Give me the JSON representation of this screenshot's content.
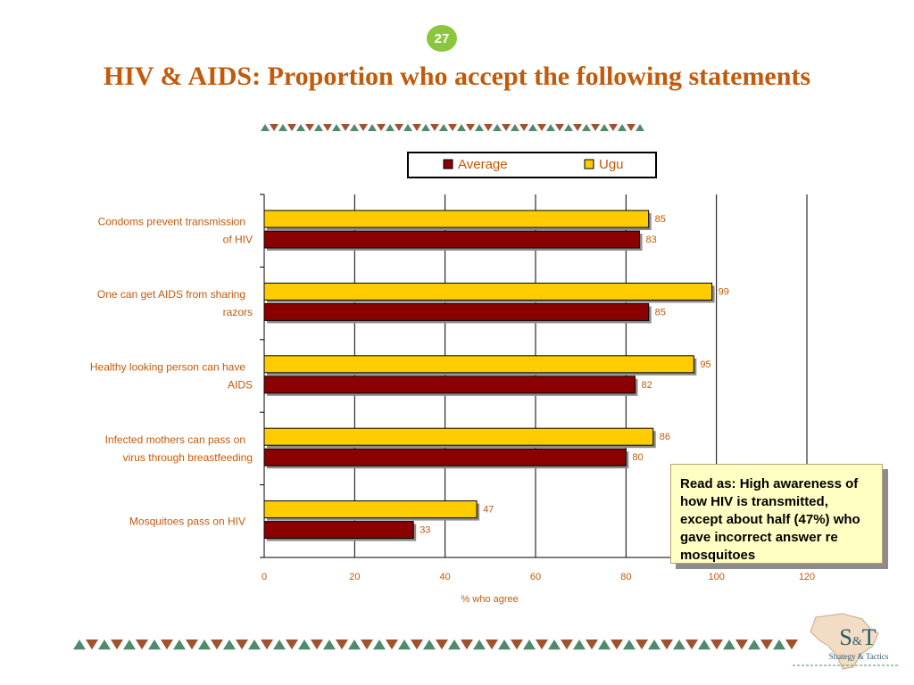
{
  "page_number": "27",
  "title": "HIV & AIDS: Proportion who accept the following statements",
  "callout_text": "Read as: High awareness of how HIV is transmitted, except about half (47%) who gave incorrect answer re mosquitoes",
  "logo": {
    "text": "S&T",
    "tagline": "Strategy & Tactics"
  },
  "colors": {
    "title": "#c25a0b",
    "label_text": "#c25a0b",
    "average": "#8b0000",
    "ugu": "#ffcc00",
    "badge": "#8cc63f",
    "border_green": "#4f8a6e",
    "border_brown": "#a0522d"
  },
  "chart_data": {
    "type": "bar",
    "orientation": "horizontal",
    "categories": [
      [
        "Condoms prevent transmission",
        "of HIV"
      ],
      [
        "One can get AIDS from sharing",
        "razors"
      ],
      [
        "Healthy looking person can have",
        "AIDS"
      ],
      [
        "Infected mothers can pass on",
        "virus through breastfeeding"
      ],
      [
        "Mosquitoes pass on HIV"
      ]
    ],
    "series": [
      {
        "name": "Average",
        "values": [
          83,
          85,
          82,
          80,
          33
        ]
      },
      {
        "name": "Ugu",
        "values": [
          85,
          99,
          95,
          86,
          47
        ]
      }
    ],
    "xlabel": "% who agree",
    "xlim": [
      0,
      120
    ],
    "xticks": [
      0,
      20,
      40,
      60,
      80,
      100,
      120
    ],
    "grid": true,
    "legend_position": "top-center"
  }
}
